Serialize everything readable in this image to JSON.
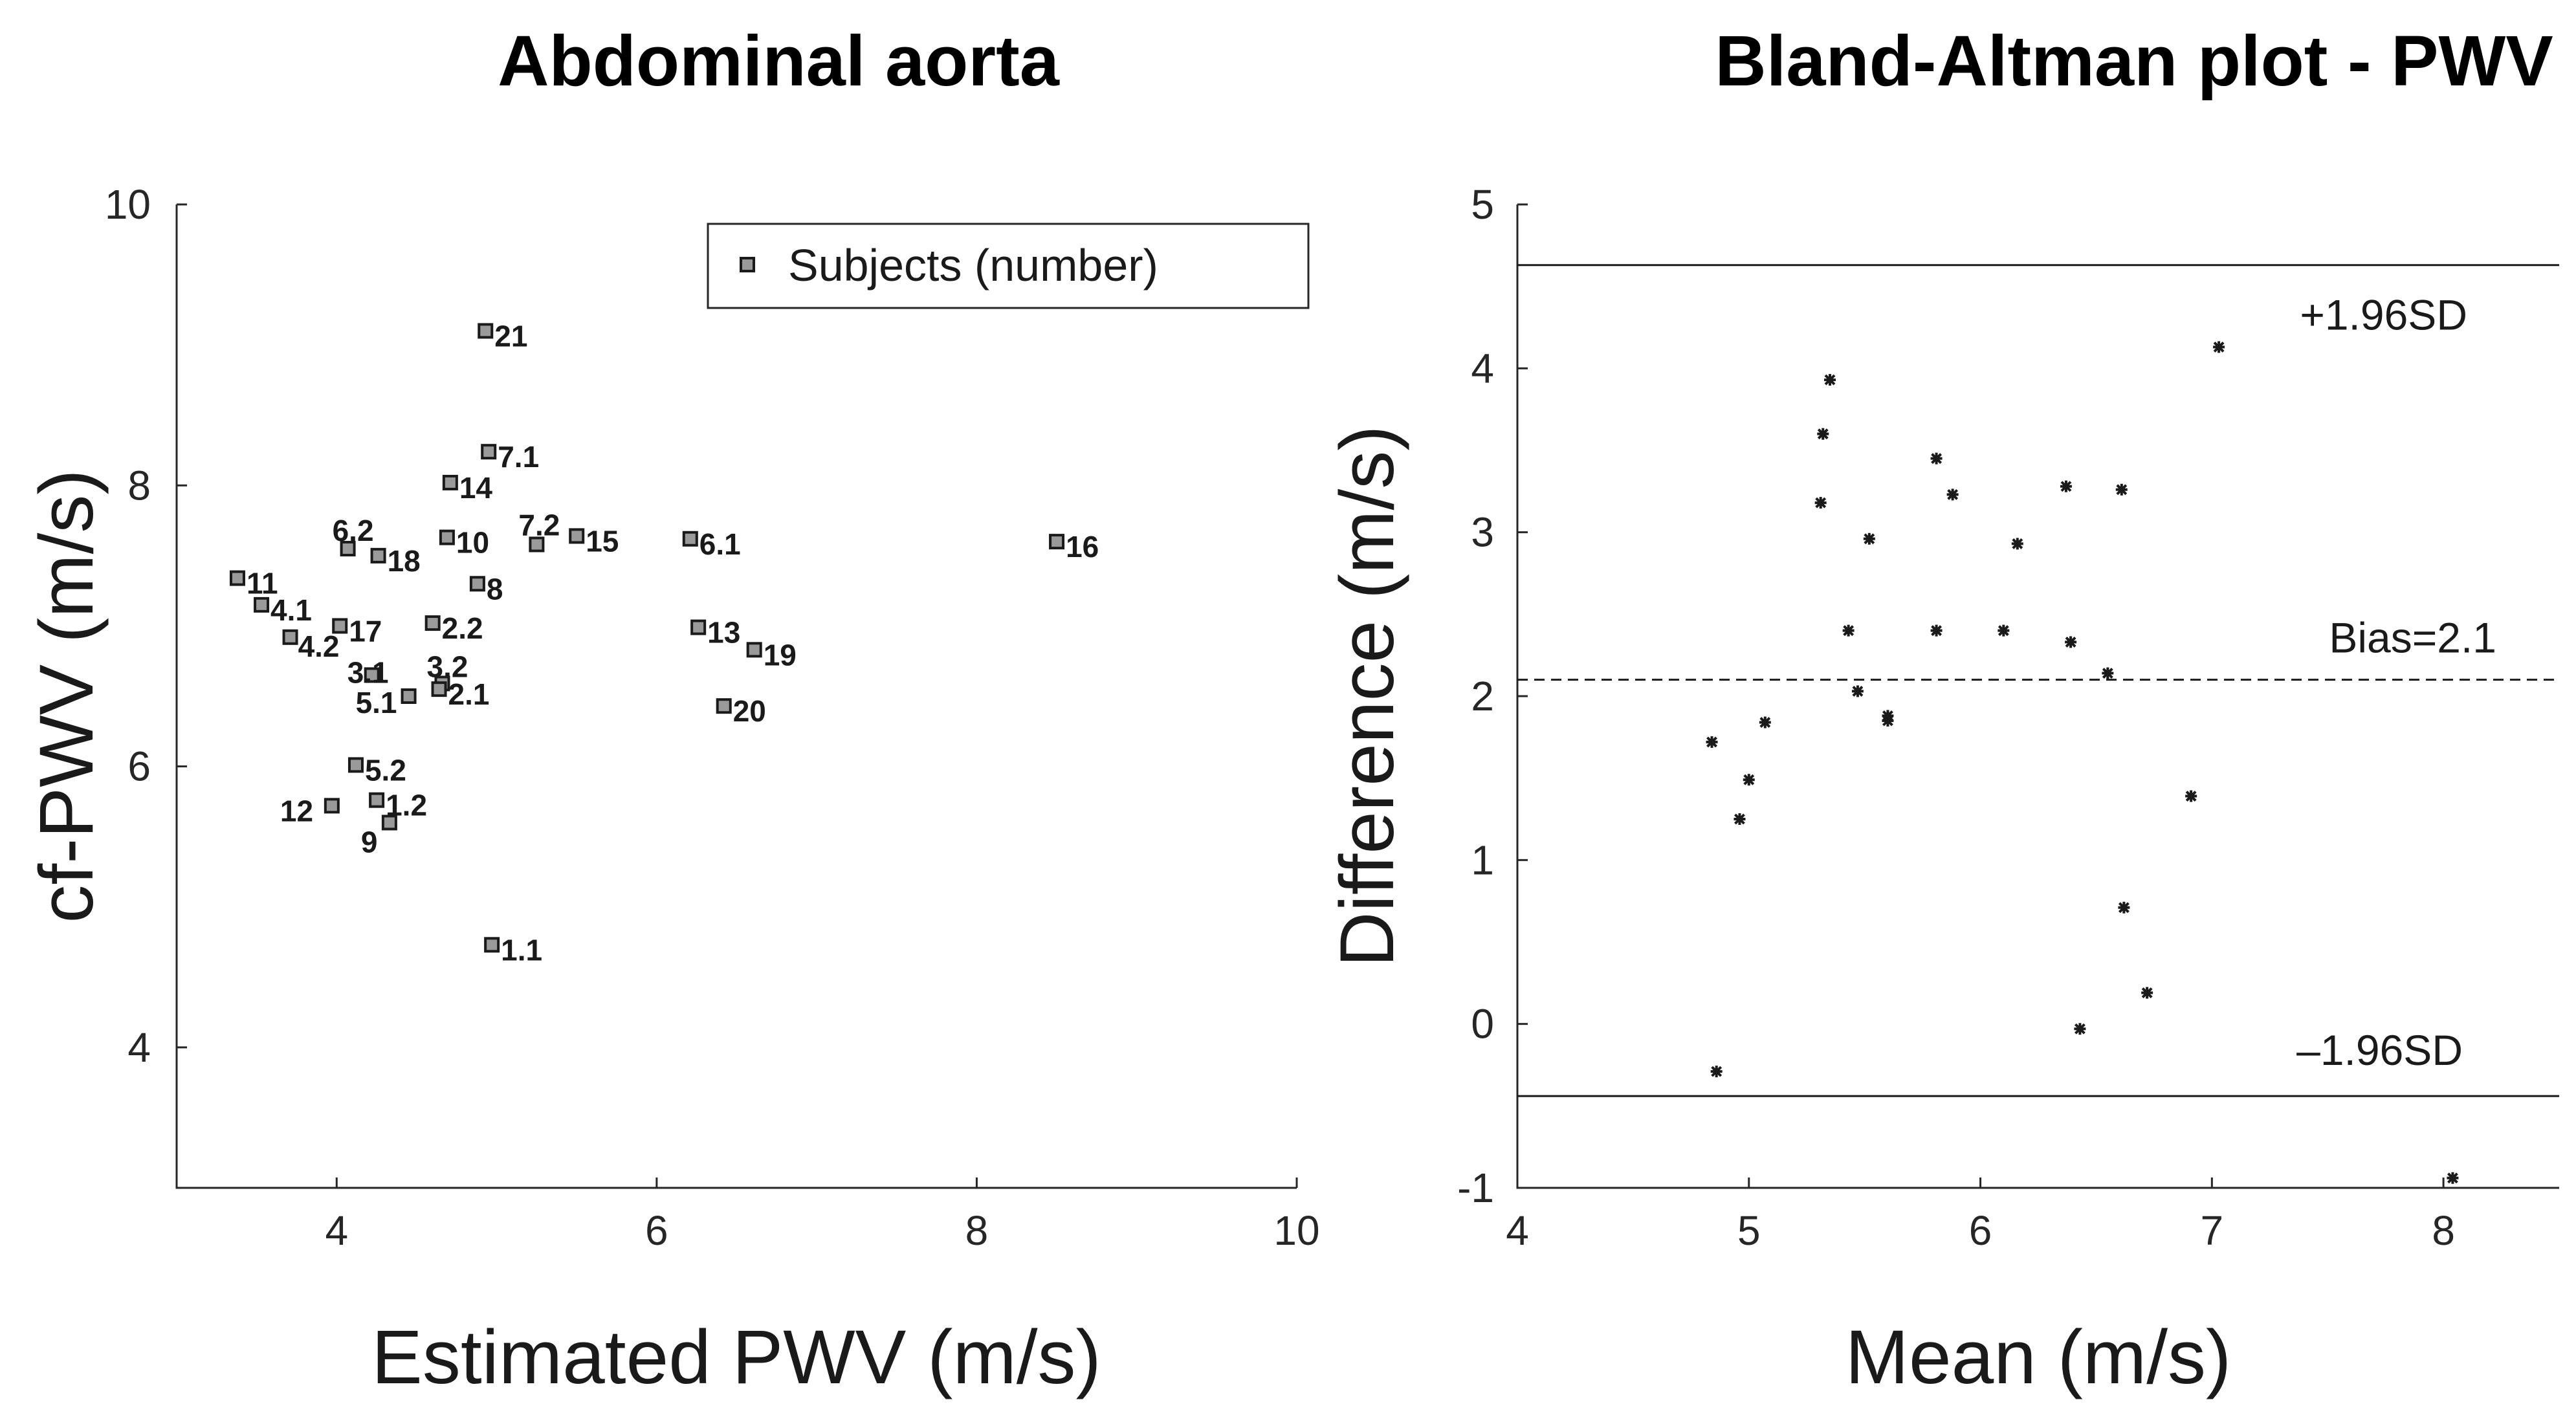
{
  "chart_data": [
    {
      "type": "scatter",
      "title": "Abdominal aorta",
      "xlabel": "Estimated PWV (m/s)",
      "ylabel": "cf-PWV (m/s)",
      "xlim": [
        3,
        10
      ],
      "ylim": [
        3,
        10
      ],
      "xticks": [
        "4",
        "6",
        "8",
        "10"
      ],
      "yticks": [
        "4",
        "6",
        "8",
        "10"
      ],
      "legend": {
        "label": "Subjects (number)",
        "position": "top-right"
      },
      "points": [
        {
          "label": "21",
          "x": 4.93,
          "y": 9.1
        },
        {
          "label": "7.1",
          "x": 4.95,
          "y": 8.24
        },
        {
          "label": "14",
          "x": 4.71,
          "y": 8.02
        },
        {
          "label": "6.2",
          "x": 4.07,
          "y": 7.55
        },
        {
          "label": "18",
          "x": 4.26,
          "y": 7.5
        },
        {
          "label": "10",
          "x": 4.69,
          "y": 7.63
        },
        {
          "label": "7.2",
          "x": 5.25,
          "y": 7.58
        },
        {
          "label": "15",
          "x": 5.5,
          "y": 7.64
        },
        {
          "label": "6.1",
          "x": 6.21,
          "y": 7.62
        },
        {
          "label": "16",
          "x": 8.5,
          "y": 7.6
        },
        {
          "label": "11",
          "x": 3.38,
          "y": 7.34
        },
        {
          "label": "8",
          "x": 4.88,
          "y": 7.3
        },
        {
          "label": "4.1",
          "x": 3.53,
          "y": 7.15
        },
        {
          "label": "17",
          "x": 4.02,
          "y": 7.0
        },
        {
          "label": "2.2",
          "x": 4.6,
          "y": 7.02
        },
        {
          "label": "4.2",
          "x": 3.71,
          "y": 6.92
        },
        {
          "label": "13",
          "x": 6.26,
          "y": 6.99
        },
        {
          "label": "19",
          "x": 6.61,
          "y": 6.83
        },
        {
          "label": "3.1",
          "x": 4.22,
          "y": 6.65
        },
        {
          "label": "3.2",
          "x": 4.66,
          "y": 6.59
        },
        {
          "label": "2.1",
          "x": 4.64,
          "y": 6.55
        },
        {
          "label": "5.1",
          "x": 4.45,
          "y": 6.5
        },
        {
          "label": "20",
          "x": 6.42,
          "y": 6.43
        },
        {
          "label": "5.2",
          "x": 4.12,
          "y": 6.01
        },
        {
          "label": "1.2",
          "x": 4.25,
          "y": 5.76
        },
        {
          "label": "12",
          "x": 3.97,
          "y": 5.72
        },
        {
          "label": "9",
          "x": 4.33,
          "y": 5.6
        },
        {
          "label": "1.1",
          "x": 4.97,
          "y": 4.73
        }
      ]
    },
    {
      "type": "scatter",
      "title": "Bland-Altman plot - PWV",
      "xlabel": "Mean (m/s)",
      "ylabel": "Difference (m/s)",
      "xlim": [
        4,
        8.5
      ],
      "ylim": [
        -1,
        5
      ],
      "xticks": [
        "4",
        "5",
        "6",
        "7",
        "8"
      ],
      "yticks": [
        "-1",
        "0",
        "1",
        "2",
        "3",
        "4",
        "5"
      ],
      "reference_lines": [
        {
          "label": "+1.96SD",
          "y": 4.63,
          "style": "solid"
        },
        {
          "label": "Bias=2.1",
          "y": 2.1,
          "style": "dashed"
        },
        {
          "label": "–1.96SD",
          "y": -0.44,
          "style": "solid"
        }
      ],
      "points": [
        {
          "x": 5.35,
          "y": 3.93
        },
        {
          "x": 5.32,
          "y": 3.6
        },
        {
          "x": 5.31,
          "y": 3.18
        },
        {
          "x": 5.52,
          "y": 2.96
        },
        {
          "x": 5.81,
          "y": 3.45
        },
        {
          "x": 5.88,
          "y": 3.23
        },
        {
          "x": 6.37,
          "y": 3.28
        },
        {
          "x": 6.61,
          "y": 3.26
        },
        {
          "x": 6.16,
          "y": 2.93
        },
        {
          "x": 7.03,
          "y": 4.13
        },
        {
          "x": 5.43,
          "y": 2.4
        },
        {
          "x": 5.81,
          "y": 2.4
        },
        {
          "x": 6.1,
          "y": 2.4
        },
        {
          "x": 6.39,
          "y": 2.33
        },
        {
          "x": 6.55,
          "y": 2.14
        },
        {
          "x": 5.47,
          "y": 2.03
        },
        {
          "x": 5.6,
          "y": 1.88
        },
        {
          "x": 5.6,
          "y": 1.85
        },
        {
          "x": 5.07,
          "y": 1.84
        },
        {
          "x": 4.84,
          "y": 1.72
        },
        {
          "x": 5.0,
          "y": 1.49
        },
        {
          "x": 4.96,
          "y": 1.25
        },
        {
          "x": 6.91,
          "y": 1.39
        },
        {
          "x": 6.62,
          "y": 0.71
        },
        {
          "x": 6.72,
          "y": 0.19
        },
        {
          "x": 6.43,
          "y": -0.03
        },
        {
          "x": 4.86,
          "y": -0.29
        },
        {
          "x": 8.04,
          "y": -0.94
        }
      ]
    }
  ]
}
